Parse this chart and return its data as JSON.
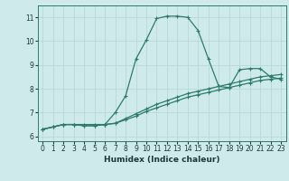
{
  "xlabel": "Humidex (Indice chaleur)",
  "bg_color": "#ceeaea",
  "line_color": "#2d7a6e",
  "grid_color": "#b8d8d8",
  "xlim": [
    -0.5,
    23.5
  ],
  "ylim": [
    5.8,
    11.5
  ],
  "xticks": [
    0,
    1,
    2,
    3,
    4,
    5,
    6,
    7,
    8,
    9,
    10,
    11,
    12,
    13,
    14,
    15,
    16,
    17,
    18,
    19,
    20,
    21,
    22,
    23
  ],
  "yticks": [
    6,
    7,
    8,
    9,
    10,
    11
  ],
  "line1_x": [
    0,
    1,
    2,
    3,
    4,
    5,
    6,
    7,
    8,
    9,
    10,
    11,
    12,
    13,
    14,
    15,
    16,
    17,
    18,
    19,
    20,
    21,
    22,
    23
  ],
  "line1_y": [
    6.3,
    6.4,
    6.5,
    6.5,
    6.5,
    6.5,
    6.5,
    6.55,
    6.7,
    6.85,
    7.05,
    7.2,
    7.35,
    7.5,
    7.65,
    7.75,
    7.85,
    7.95,
    8.05,
    8.15,
    8.25,
    8.35,
    8.4,
    8.45
  ],
  "line2_x": [
    0,
    1,
    2,
    3,
    4,
    5,
    6,
    7,
    8,
    9,
    10,
    11,
    12,
    13,
    14,
    15,
    16,
    17,
    18,
    19,
    20,
    21,
    22,
    23
  ],
  "line2_y": [
    6.3,
    6.4,
    6.5,
    6.5,
    6.45,
    6.45,
    6.5,
    6.55,
    6.75,
    6.95,
    7.15,
    7.35,
    7.5,
    7.65,
    7.8,
    7.9,
    8.0,
    8.1,
    8.2,
    8.3,
    8.4,
    8.5,
    8.55,
    8.6
  ],
  "line3_x": [
    0,
    1,
    2,
    3,
    4,
    5,
    6,
    7,
    8,
    9,
    10,
    11,
    12,
    13,
    14,
    15,
    16,
    17,
    18,
    19,
    20,
    21,
    22,
    23
  ],
  "line3_y": [
    6.3,
    6.4,
    6.5,
    6.5,
    6.45,
    6.45,
    6.5,
    7.0,
    7.7,
    9.25,
    10.05,
    10.95,
    11.05,
    11.05,
    11.0,
    10.45,
    9.25,
    8.1,
    8.05,
    8.8,
    8.85,
    8.85,
    8.5,
    8.4
  ],
  "marker": "+",
  "markersize": 3,
  "markeredgewidth": 0.8,
  "linewidth": 0.9
}
